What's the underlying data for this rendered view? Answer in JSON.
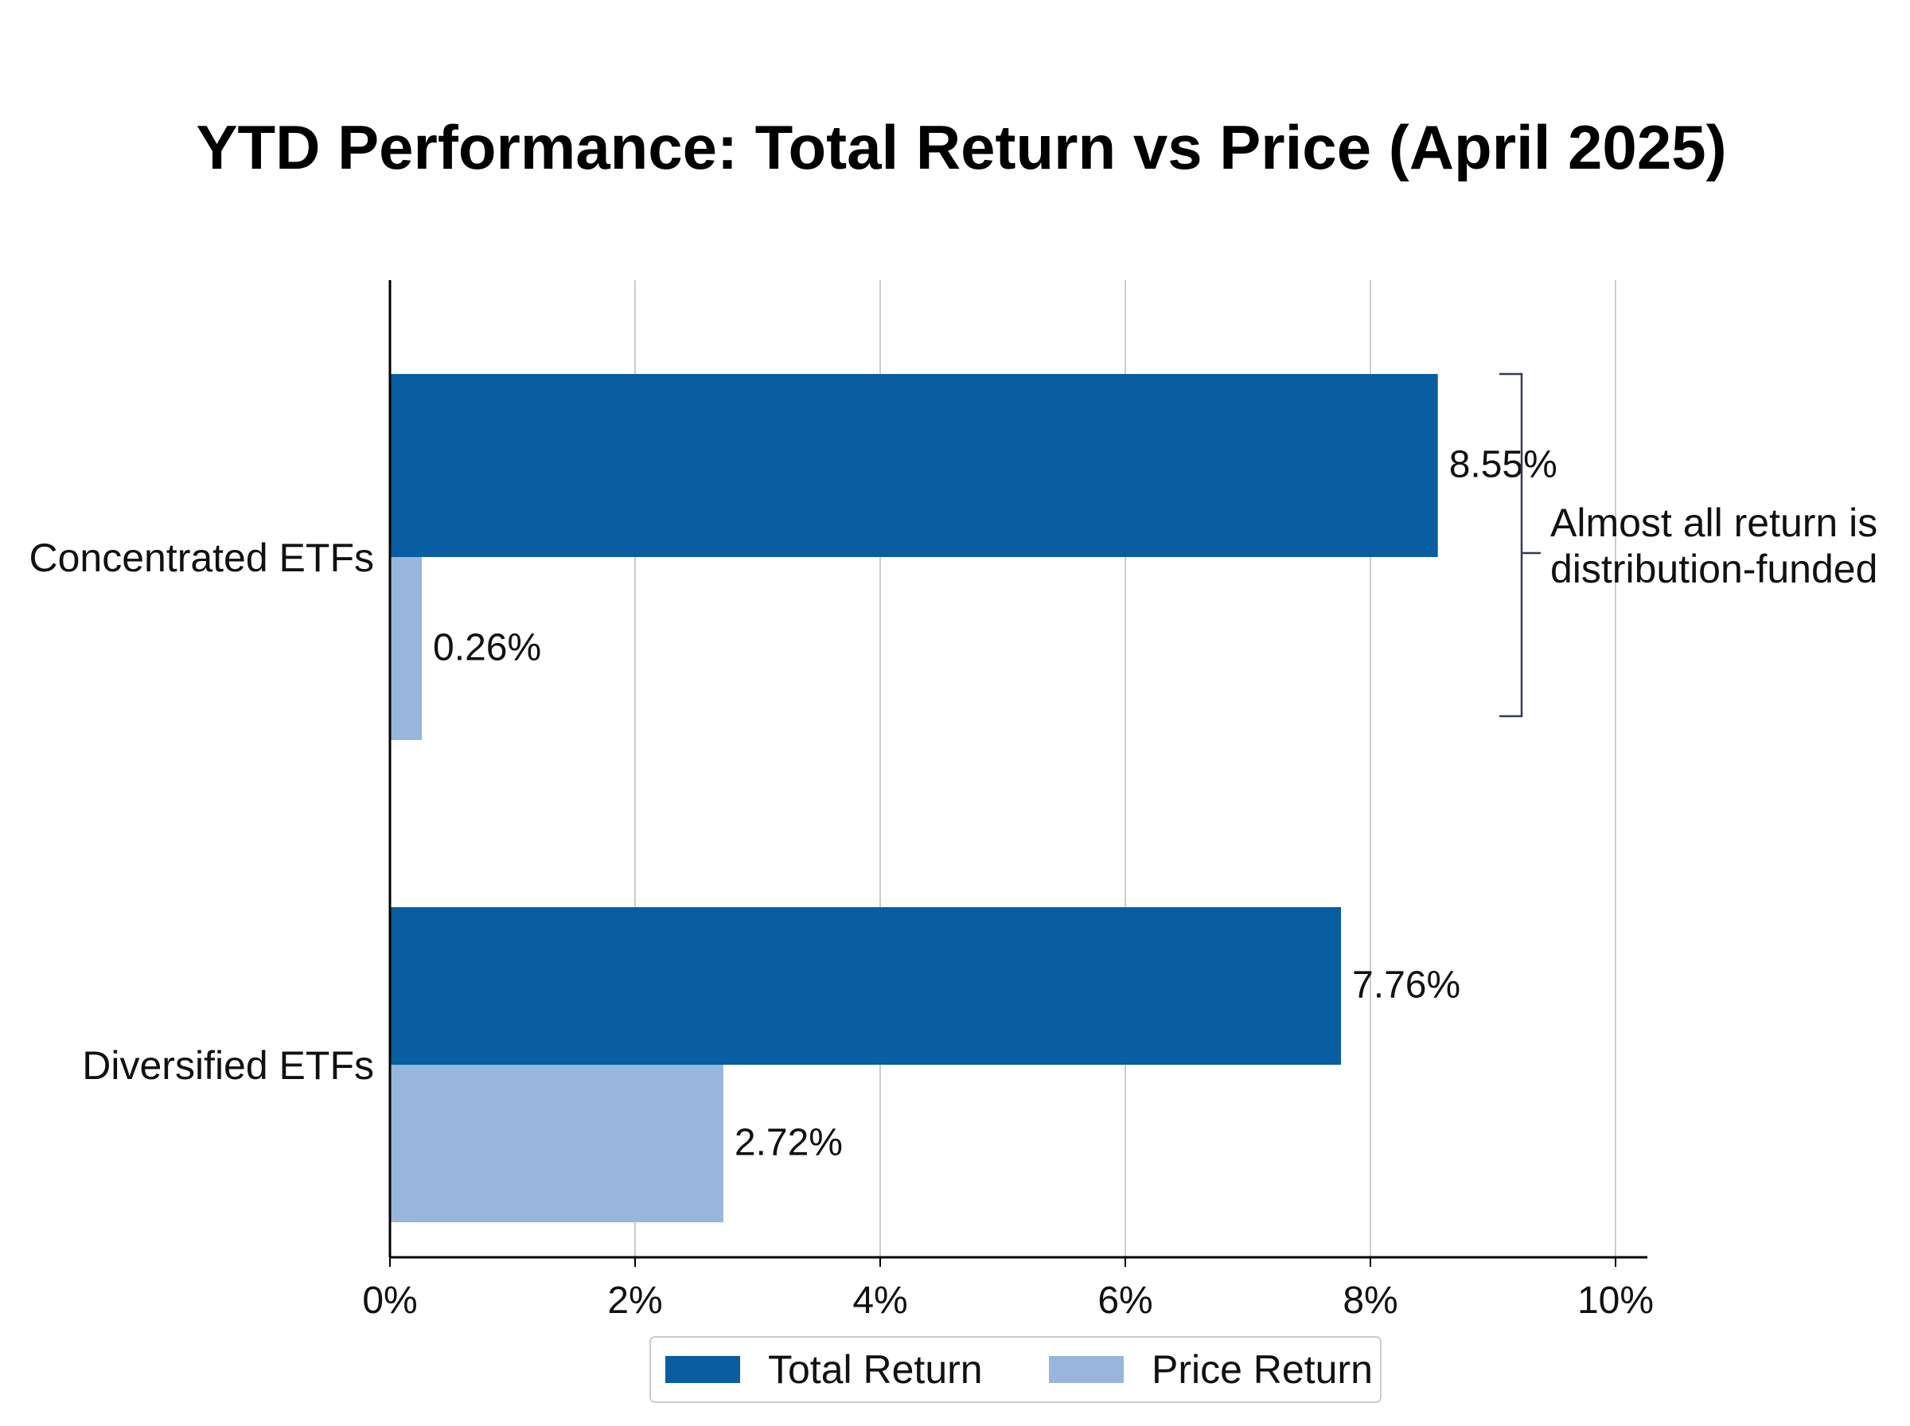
{
  "chart_data": {
    "type": "bar",
    "orientation": "horizontal",
    "title": "YTD Performance: Total Return vs Price (April 2025)",
    "categories": [
      "Concentrated ETFs",
      "Diversified ETFs"
    ],
    "series": [
      {
        "name": "Total Return",
        "color": "#085ea0",
        "values": [
          8.55,
          7.76
        ],
        "labels": [
          "8.55%",
          "7.76%"
        ]
      },
      {
        "name": "Price Return",
        "color": "#98b6dc",
        "values": [
          0.26,
          2.72
        ],
        "labels": [
          "0.26%",
          "2.72%"
        ]
      }
    ],
    "xlim": [
      0,
      10
    ],
    "xticks": [
      {
        "value": 0,
        "label": "0%"
      },
      {
        "value": 2,
        "label": "2%"
      },
      {
        "value": 4,
        "label": "4%"
      },
      {
        "value": 6,
        "label": "6%"
      },
      {
        "value": 8,
        "label": "8%"
      },
      {
        "value": 10,
        "label": "10%"
      }
    ],
    "grid": "vertical",
    "legend_position": "bottom-center",
    "annotation": {
      "category": "Concentrated ETFs",
      "lines": [
        "Almost all return is",
        "distribution-funded"
      ]
    }
  }
}
